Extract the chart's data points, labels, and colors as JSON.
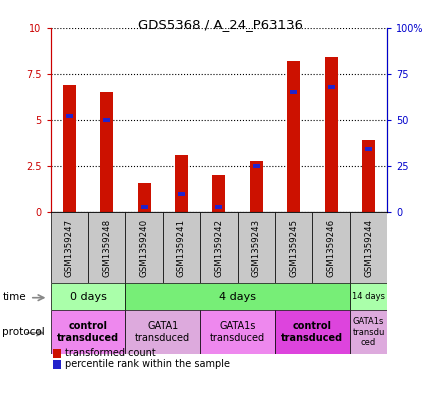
{
  "title": "GDS5368 / A_24_P63136",
  "samples": [
    "GSM1359247",
    "GSM1359248",
    "GSM1359240",
    "GSM1359241",
    "GSM1359242",
    "GSM1359243",
    "GSM1359245",
    "GSM1359246",
    "GSM1359244"
  ],
  "red_values": [
    6.9,
    6.5,
    1.6,
    3.1,
    2.0,
    2.8,
    8.2,
    8.4,
    3.9
  ],
  "blue_values": [
    5.2,
    5.0,
    0.3,
    1.0,
    0.3,
    2.5,
    6.5,
    6.8,
    3.4
  ],
  "ylim": [
    0,
    10
  ],
  "yticks_left": [
    0,
    2.5,
    5,
    7.5,
    10
  ],
  "ytick_labels_left": [
    "0",
    "2.5",
    "5",
    "7.5",
    "10"
  ],
  "yticks_right": [
    0,
    25,
    50,
    75,
    100
  ],
  "ytick_labels_right": [
    "0",
    "25",
    "50",
    "75",
    "100%"
  ],
  "left_axis_color": "#cc0000",
  "right_axis_color": "#0000cc",
  "bar_red": "#cc1100",
  "bar_blue": "#2222cc",
  "sample_bg": "#c8c8c8",
  "time_groups": [
    {
      "label": "0 days",
      "start": 0,
      "end": 2,
      "color": "#aaffaa"
    },
    {
      "label": "4 days",
      "start": 2,
      "end": 8,
      "color": "#77ee77"
    },
    {
      "label": "14 days",
      "start": 8,
      "end": 9,
      "color": "#aaffaa"
    }
  ],
  "protocol_groups": [
    {
      "label": "control\ntransduced",
      "start": 0,
      "end": 2,
      "color": "#ee88ee",
      "bold": true
    },
    {
      "label": "GATA1\ntransduced",
      "start": 2,
      "end": 4,
      "color": "#ddaadd",
      "bold": false
    },
    {
      "label": "GATA1s\ntransduced",
      "start": 4,
      "end": 6,
      "color": "#ee88ee",
      "bold": false
    },
    {
      "label": "control\ntransduced",
      "start": 6,
      "end": 8,
      "color": "#dd44dd",
      "bold": true
    },
    {
      "label": "GATA1s\ntransdu\nced",
      "start": 8,
      "end": 9,
      "color": "#ddaadd",
      "bold": false
    }
  ],
  "legend_red_label": "transformed count",
  "legend_blue_label": "percentile rank within the sample",
  "time_label": "time",
  "protocol_label": "protocol",
  "bar_width": 0.35
}
